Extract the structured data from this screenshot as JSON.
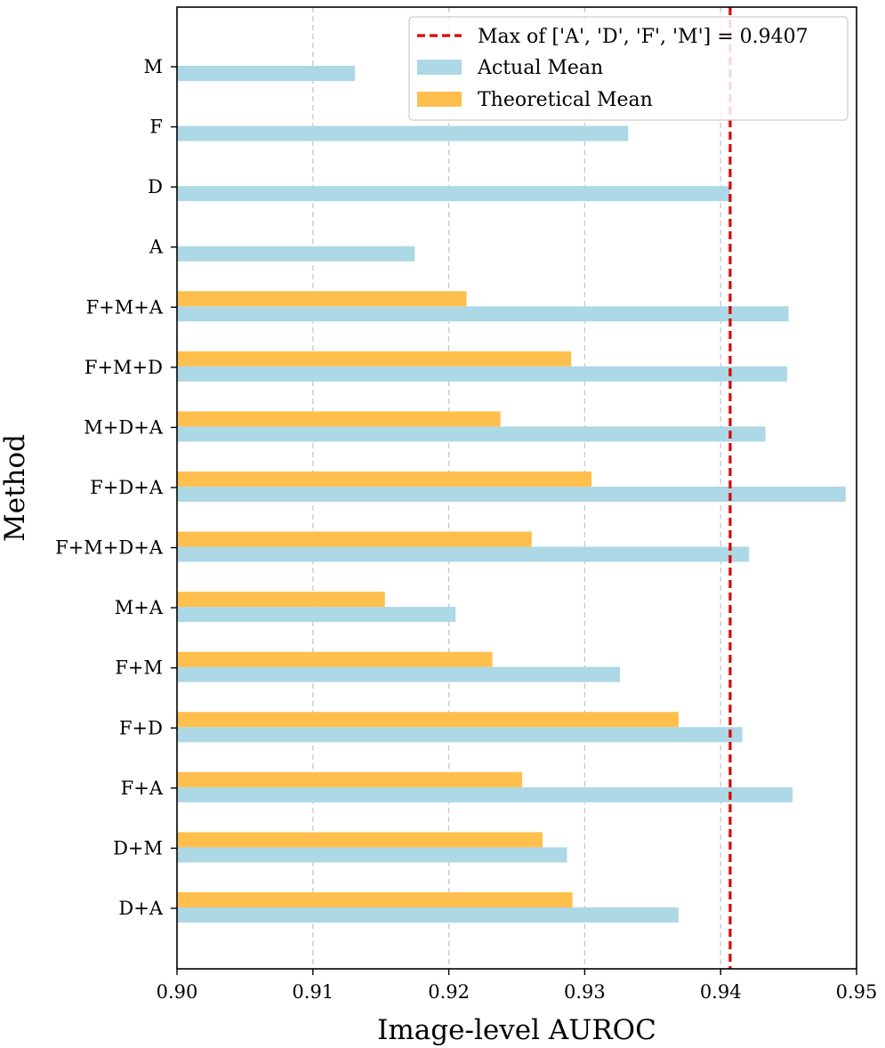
{
  "chart_data": {
    "type": "bar",
    "orientation": "horizontal",
    "xlabel": "Image-level AUROC",
    "ylabel": "Method",
    "xlim": [
      0.9,
      0.95
    ],
    "xticks": [
      "0.90",
      "0.91",
      "0.92",
      "0.93",
      "0.94",
      "0.95"
    ],
    "grid": "vertical-dashed",
    "legend_position": "top-right",
    "categories": [
      "M",
      "F",
      "D",
      "A",
      "F+M+A",
      "F+M+D",
      "M+D+A",
      "F+D+A",
      "F+M+D+A",
      "M+A",
      "F+M",
      "F+D",
      "F+A",
      "D+M",
      "D+A"
    ],
    "series": [
      {
        "name": "Actual Mean",
        "color": "#add8e6",
        "values": [
          0.9131,
          0.9332,
          0.9407,
          0.9175,
          0.945,
          0.9449,
          0.9433,
          0.9492,
          0.9421,
          0.9205,
          0.9326,
          0.9416,
          0.9453,
          0.9287,
          0.9369
        ]
      },
      {
        "name": "Theoretical Mean",
        "color": "#ffbf4d",
        "values": [
          null,
          null,
          null,
          null,
          0.9213,
          0.929,
          0.9238,
          0.9305,
          0.9261,
          0.9153,
          0.9232,
          0.9369,
          0.9254,
          0.9269,
          0.9291
        ]
      }
    ],
    "reference_line": {
      "label": "Max of ['A', 'D', 'F', 'M'] = 0.9407",
      "value": 0.9407,
      "color": "#dd0000",
      "style": "dashed"
    }
  }
}
